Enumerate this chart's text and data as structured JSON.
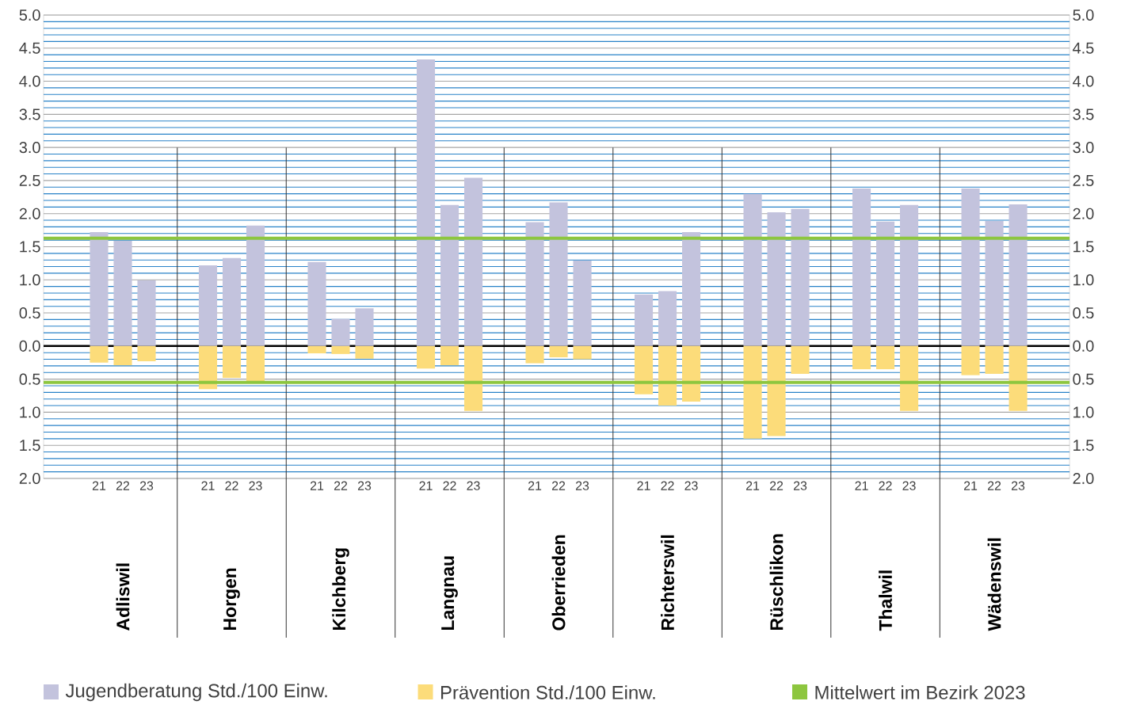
{
  "chart_data": {
    "type": "bar",
    "categories": [
      "21",
      "22",
      "23",
      "21",
      "22",
      "23",
      "21",
      "22",
      "23",
      "21",
      "22",
      "23",
      "21",
      "22",
      "23",
      "21",
      "22",
      "23",
      "21",
      "22",
      "23",
      "21",
      "22",
      "23",
      "21",
      "22",
      "23"
    ],
    "series": [
      {
        "name": "Jugendberatung Std./100 Einw.",
        "color": "#c3c3dd",
        "values": [
          1.72,
          1.59,
          0.99,
          1.22,
          1.33,
          1.82,
          1.27,
          0.41,
          0.57,
          4.33,
          2.13,
          2.54,
          1.87,
          2.17,
          1.29,
          0.78,
          0.83,
          1.72,
          2.3,
          2.02,
          2.07,
          2.38,
          1.88,
          2.13,
          2.38,
          1.89,
          2.14
        ]
      },
      {
        "name": "Prävention Std./100 Einw.",
        "color": "#fcdc7a",
        "values": [
          -0.25,
          -0.29,
          -0.23,
          -0.65,
          -0.48,
          -0.55,
          -0.11,
          -0.12,
          -0.19,
          -0.34,
          -0.29,
          -0.98,
          -0.26,
          -0.17,
          -0.2,
          -0.73,
          -0.9,
          -0.84,
          -1.4,
          -1.36,
          -0.42,
          -0.35,
          -0.35,
          -0.98,
          -0.44,
          -0.42,
          -0.98
        ]
      }
    ],
    "stacked": true,
    "annotations": [
      "Adliswil",
      "Horgen",
      "Kilchberg",
      "Langnau",
      "Oberrieden",
      "Richterswil",
      "Rüschlikon",
      "Thalwil",
      "Wädenswil"
    ],
    "ref_lines": [
      {
        "axis": "y",
        "value": 1.63,
        "label": "Mittelwert im Bezirk 2023",
        "color": "#8dc63f"
      },
      {
        "axis": "y",
        "value": -0.55,
        "color": "#8dc63f"
      }
    ],
    "ylim": [
      -2,
      5
    ],
    "yticks": [
      {
        "value": -2,
        "label": "2.0"
      },
      {
        "value": -1.9,
        "label": null
      },
      {
        "value": -1.8,
        "label": null
      },
      {
        "value": -1.7,
        "label": null
      },
      {
        "value": -1.6,
        "label": null
      },
      {
        "value": -1.5,
        "label": "1.5"
      },
      {
        "value": -1.4,
        "label": null
      },
      {
        "value": -1.3,
        "label": null
      },
      {
        "value": -1.2,
        "label": null
      },
      {
        "value": -1.1,
        "label": null
      },
      {
        "value": -1,
        "label": "1.0"
      },
      {
        "value": -0.9,
        "label": null
      },
      {
        "value": -0.8,
        "label": null
      },
      {
        "value": -0.7,
        "label": null
      },
      {
        "value": -0.6,
        "label": null
      },
      {
        "value": -0.5,
        "label": "0.5"
      },
      {
        "value": -0.4,
        "label": null
      },
      {
        "value": -0.3,
        "label": null
      },
      {
        "value": -0.2,
        "label": null
      },
      {
        "value": -0.1,
        "label": null
      },
      {
        "value": 0,
        "label": "0.0"
      },
      {
        "value": 0.1,
        "label": null
      },
      {
        "value": 0.2,
        "label": null
      },
      {
        "value": 0.3,
        "label": null
      },
      {
        "value": 0.4,
        "label": null
      },
      {
        "value": 0.5,
        "label": "0.5"
      },
      {
        "value": 0.6,
        "label": null
      },
      {
        "value": 0.7,
        "label": null
      },
      {
        "value": 0.8,
        "label": null
      },
      {
        "value": 0.9,
        "label": null
      },
      {
        "value": 1,
        "label": "1.0"
      },
      {
        "value": 1.1,
        "label": null
      },
      {
        "value": 1.2,
        "label": null
      },
      {
        "value": 1.3,
        "label": null
      },
      {
        "value": 1.4,
        "label": null
      },
      {
        "value": 1.5,
        "label": "1.5"
      },
      {
        "value": 1.6,
        "label": null
      },
      {
        "value": 1.7,
        "label": null
      },
      {
        "value": 1.8,
        "label": null
      },
      {
        "value": 1.9,
        "label": null
      },
      {
        "value": 2,
        "label": "2.0"
      },
      {
        "value": 2.1,
        "label": null
      },
      {
        "value": 2.2,
        "label": null
      },
      {
        "value": 2.3,
        "label": null
      },
      {
        "value": 2.4,
        "label": null
      },
      {
        "value": 2.5,
        "label": "2.5"
      },
      {
        "value": 2.6,
        "label": null
      },
      {
        "value": 2.7,
        "label": null
      },
      {
        "value": 2.8,
        "label": null
      },
      {
        "value": 2.9,
        "label": null
      },
      {
        "value": 3,
        "label": "3.0"
      },
      {
        "value": 3.1,
        "label": null
      },
      {
        "value": 3.2,
        "label": null
      },
      {
        "value": 3.3,
        "label": null
      },
      {
        "value": 3.4,
        "label": null
      },
      {
        "value": 3.5,
        "label": "3.5"
      },
      {
        "value": 3.6,
        "label": null
      },
      {
        "value": 3.7,
        "label": null
      },
      {
        "value": 3.8,
        "label": null
      },
      {
        "value": 3.9,
        "label": null
      },
      {
        "value": 4,
        "label": "4.0"
      },
      {
        "value": 4.1,
        "label": null
      },
      {
        "value": 4.2,
        "label": null
      },
      {
        "value": 4.3,
        "label": null
      },
      {
        "value": 4.4,
        "label": null
      },
      {
        "value": 4.5,
        "label": "4.5"
      },
      {
        "value": 4.6,
        "label": null
      },
      {
        "value": 4.7,
        "label": null
      },
      {
        "value": 4.8,
        "label": null
      },
      {
        "value": 4.9,
        "label": null
      },
      {
        "value": 5,
        "label": "5.0"
      }
    ],
    "y2lim": [
      -2,
      5
    ],
    "y2ticks": [
      {
        "value": -2,
        "label": "2.0"
      },
      {
        "value": -1.5,
        "label": "1.5"
      },
      {
        "value": -1,
        "label": "1.0"
      },
      {
        "value": -0.5,
        "label": "0.5"
      },
      {
        "value": 0,
        "label": "0.0"
      },
      {
        "value": 0.5,
        "label": "0.5"
      },
      {
        "value": 1,
        "label": "1.0"
      },
      {
        "value": 1.5,
        "label": "1.5"
      },
      {
        "value": 2,
        "label": "2.0"
      },
      {
        "value": 2.5,
        "label": "2.5"
      },
      {
        "value": 3,
        "label": "3.0"
      },
      {
        "value": 3.5,
        "label": "3.5"
      },
      {
        "value": 4,
        "label": "4.0"
      },
      {
        "value": 4.5,
        "label": "4.5"
      },
      {
        "value": 5,
        "label": "5.0"
      }
    ],
    "grid": "y",
    "legend": "bottom"
  }
}
